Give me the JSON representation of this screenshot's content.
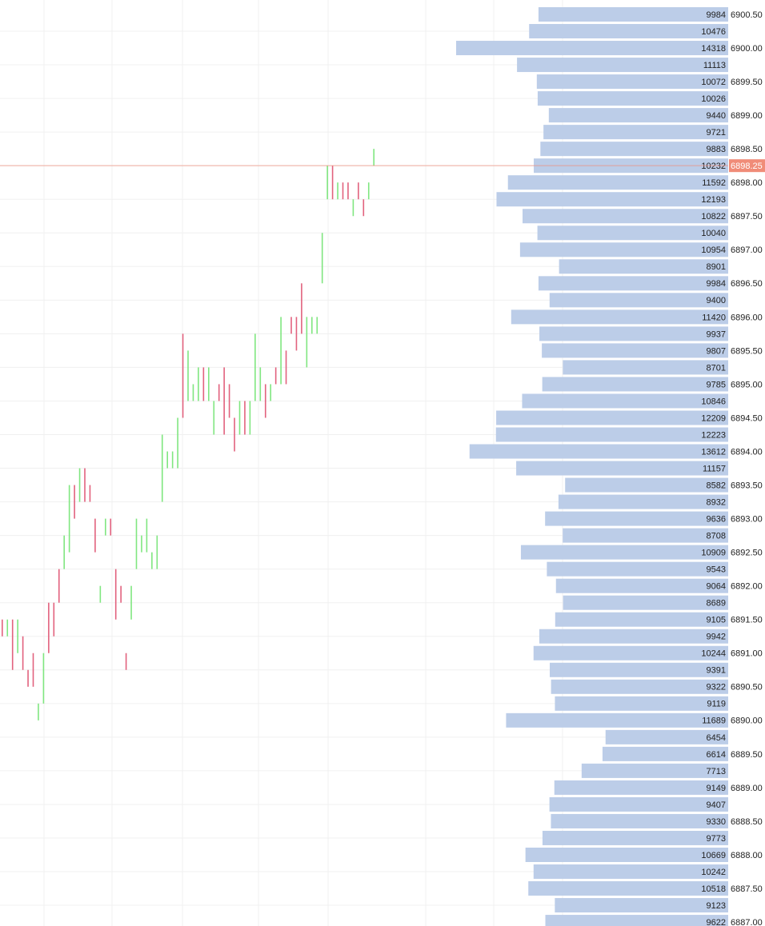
{
  "chart_data": {
    "type": "bar",
    "values": [
      9984,
      10476,
      14318,
      11113,
      10072,
      10026,
      9440,
      9721,
      9883,
      10232,
      11592,
      12193,
      10822,
      10040,
      10954,
      8901,
      9984,
      9400,
      11420,
      9937,
      9807,
      8701,
      9785,
      10846,
      12209,
      12223,
      13612,
      11157,
      8582,
      8932,
      9636,
      8708,
      10909,
      9543,
      9064,
      8689,
      9105,
      9942,
      10244,
      9391,
      9322,
      9119,
      11689,
      6454,
      6614,
      7713,
      9149,
      9407,
      9330,
      9773,
      10669,
      10242,
      10518,
      9123,
      9622
    ],
    "color": "#bccde8",
    "yticks": [
      {
        "value": 6900.5,
        "label": "6900.50"
      },
      {
        "value": 6900,
        "label": "6900.00"
      },
      {
        "value": 6899.5,
        "label": "6899.50"
      },
      {
        "value": 6899,
        "label": "6899.00"
      },
      {
        "value": 6898.5,
        "label": "6898.50"
      },
      {
        "value": 6898,
        "label": "6898.00"
      },
      {
        "value": 6897.5,
        "label": "6897.50"
      },
      {
        "value": 6897,
        "label": "6897.00"
      },
      {
        "value": 6896.5,
        "label": "6896.50"
      },
      {
        "value": 6896,
        "label": "6896.00"
      },
      {
        "value": 6895.5,
        "label": "6895.50"
      },
      {
        "value": 6895,
        "label": "6895.00"
      },
      {
        "value": 6894.5,
        "label": "6894.50"
      },
      {
        "value": 6894,
        "label": "6894.00"
      },
      {
        "value": 6893.5,
        "label": "6893.50"
      },
      {
        "value": 6893,
        "label": "6893.00"
      },
      {
        "value": 6892.5,
        "label": "6892.50"
      },
      {
        "value": 6892,
        "label": "6892.00"
      },
      {
        "value": 6891.5,
        "label": "6891.50"
      },
      {
        "value": 6891,
        "label": "6891.00"
      },
      {
        "value": 6890.5,
        "label": "6890.50"
      },
      {
        "value": 6890,
        "label": "6890.00"
      },
      {
        "value": 6889.5,
        "label": "6889.50"
      },
      {
        "value": 6889,
        "label": "6889.00"
      },
      {
        "value": 6888.5,
        "label": "6888.50"
      },
      {
        "value": 6888,
        "label": "6888.00"
      },
      {
        "value": 6887.5,
        "label": "6887.50"
      },
      {
        "value": 6887,
        "label": "6887.00"
      }
    ],
    "current_price": {
      "value": 6898.25,
      "label": "6898.25"
    },
    "current_color": "#f08c78",
    "candles": {
      "up_color": "#80e680",
      "down_color": "#e2627e",
      "lows": [
        6891.25,
        6891.25,
        6890.75,
        6891.0,
        6890.75,
        6890.5,
        6890.5,
        6890.0,
        6890.25,
        6891.0,
        6891.25,
        6891.75,
        6892.25,
        6892.5,
        6893.0,
        6893.25,
        6893.25,
        6893.25,
        6892.5,
        6891.75,
        6892.75,
        6892.75,
        6891.5,
        6891.75,
        6890.75,
        6891.5,
        6892.25,
        6892.5,
        6892.5,
        6892.25,
        6892.25,
        6893.25,
        6893.75,
        6893.75,
        6893.75,
        6894.5,
        6894.75,
        6894.75,
        6894.75,
        6894.75,
        6894.75,
        6894.25,
        6894.75,
        6894.25,
        6894.5,
        6894.0,
        6894.25,
        6894.25,
        6894.25,
        6894.75,
        6894.75,
        6894.5,
        6894.75,
        6895.0,
        6895.0,
        6895.0,
        6895.75,
        6895.5,
        6895.75,
        6895.25,
        6895.75,
        6895.75,
        6896.5,
        6897.75,
        6897.75,
        6897.75,
        6897.75,
        6897.75,
        6897.5,
        6897.75,
        6897.5,
        6897.75,
        6898.25
      ],
      "highs": [
        6891.5,
        6891.5,
        6891.5,
        6891.5,
        6891.25,
        6890.75,
        6891.0,
        6890.25,
        6891.0,
        6891.75,
        6891.75,
        6892.25,
        6892.75,
        6893.5,
        6893.5,
        6893.75,
        6893.75,
        6893.5,
        6893.0,
        6892.0,
        6893.0,
        6893.0,
        6892.25,
        6892.0,
        6891.0,
        6892.0,
        6893.0,
        6892.75,
        6893.0,
        6892.5,
        6892.75,
        6894.25,
        6894.0,
        6894.0,
        6894.5,
        6895.75,
        6895.5,
        6895.0,
        6895.25,
        6895.25,
        6895.25,
        6894.75,
        6895.0,
        6895.25,
        6895.0,
        6894.5,
        6894.75,
        6894.75,
        6894.75,
        6895.75,
        6895.25,
        6895.0,
        6895.0,
        6895.25,
        6896.0,
        6895.5,
        6896.0,
        6896.0,
        6896.5,
        6896.0,
        6896.0,
        6896.0,
        6897.25,
        6898.25,
        6898.25,
        6898.0,
        6898.0,
        6898.0,
        6897.75,
        6898.0,
        6897.75,
        6898.0,
        6898.5
      ],
      "direction": [
        "down",
        "up",
        "down",
        "up",
        "down",
        "down",
        "down",
        "up",
        "up",
        "down",
        "down",
        "down",
        "up",
        "up",
        "down",
        "up",
        "down",
        "down",
        "down",
        "up",
        "up",
        "down",
        "down",
        "down",
        "down",
        "up",
        "up",
        "up",
        "up",
        "up",
        "up",
        "up",
        "up",
        "up",
        "up",
        "down",
        "up",
        "up",
        "up",
        "down",
        "up",
        "up",
        "down",
        "down",
        "down",
        "down",
        "up",
        "down",
        "up",
        "up",
        "up",
        "down",
        "up",
        "down",
        "up",
        "down",
        "down",
        "down",
        "down",
        "up",
        "up",
        "up",
        "up",
        "up",
        "down",
        "up",
        "down",
        "down",
        "up",
        "down",
        "down",
        "up",
        "up"
      ]
    }
  }
}
